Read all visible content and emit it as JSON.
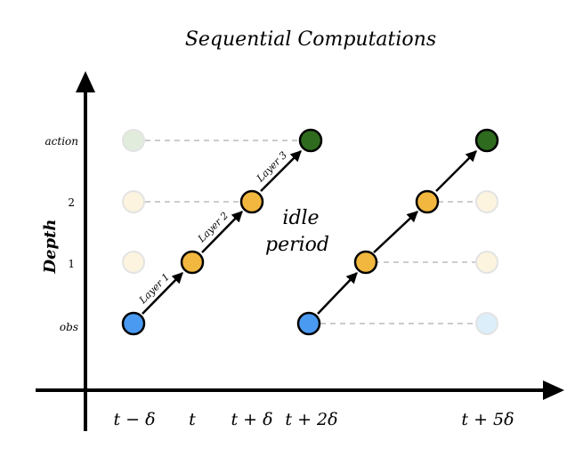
{
  "title": "Sequential Computations",
  "y_axis": {
    "label": "Depth",
    "ticks": [
      {
        "key": "obs",
        "label": "obs",
        "italic": true
      },
      {
        "key": "1",
        "label": "1",
        "italic": false
      },
      {
        "key": "2",
        "label": "2",
        "italic": false
      },
      {
        "key": "action",
        "label": "action",
        "italic": true
      }
    ]
  },
  "x_axis": {
    "ticks": [
      "t − δ",
      "t",
      "t + δ",
      "t + 2δ",
      "t + 5δ"
    ]
  },
  "annotation": {
    "line1": "idle",
    "line2": "period"
  },
  "layer_labels": [
    "Layer 1",
    "Layer 2",
    "Layer 3"
  ],
  "colors": {
    "obs": "#4a9af2",
    "hidden": "#f2b73f",
    "action": "#2e6b1e",
    "obs_faded": "#dceefa",
    "hidden_faded": "#fcf4df",
    "action_faded": "#e1ecdc",
    "dashed": "#cccccc"
  },
  "nodes": [
    {
      "name": "node-obs-t-minus-delta",
      "kind": "obs",
      "faded": false
    },
    {
      "name": "node-depth1-t",
      "kind": "hidden",
      "faded": false
    },
    {
      "name": "node-depth2-t-plus-delta",
      "kind": "hidden",
      "faded": false
    },
    {
      "name": "node-action-t-plus-2delta",
      "kind": "action",
      "faded": false
    },
    {
      "name": "node-faded-depth1-t-minus-delta",
      "kind": "hidden",
      "faded": true
    },
    {
      "name": "node-faded-depth2-t-minus-delta",
      "kind": "hidden",
      "faded": true
    },
    {
      "name": "node-faded-action-t-minus-delta",
      "kind": "action",
      "faded": true
    },
    {
      "name": "node-obs-t-plus-2delta",
      "kind": "obs",
      "faded": false
    },
    {
      "name": "node-depth1-second",
      "kind": "hidden",
      "faded": false
    },
    {
      "name": "node-depth2-second",
      "kind": "hidden",
      "faded": false
    },
    {
      "name": "node-action-t-plus-5delta",
      "kind": "action",
      "faded": false
    },
    {
      "name": "node-faded-obs-t-plus-5delta",
      "kind": "obs",
      "faded": true
    },
    {
      "name": "node-faded-depth1-t-plus-5delta",
      "kind": "hidden",
      "faded": true
    },
    {
      "name": "node-faded-depth2-t-plus-5delta",
      "kind": "hidden",
      "faded": true
    }
  ]
}
